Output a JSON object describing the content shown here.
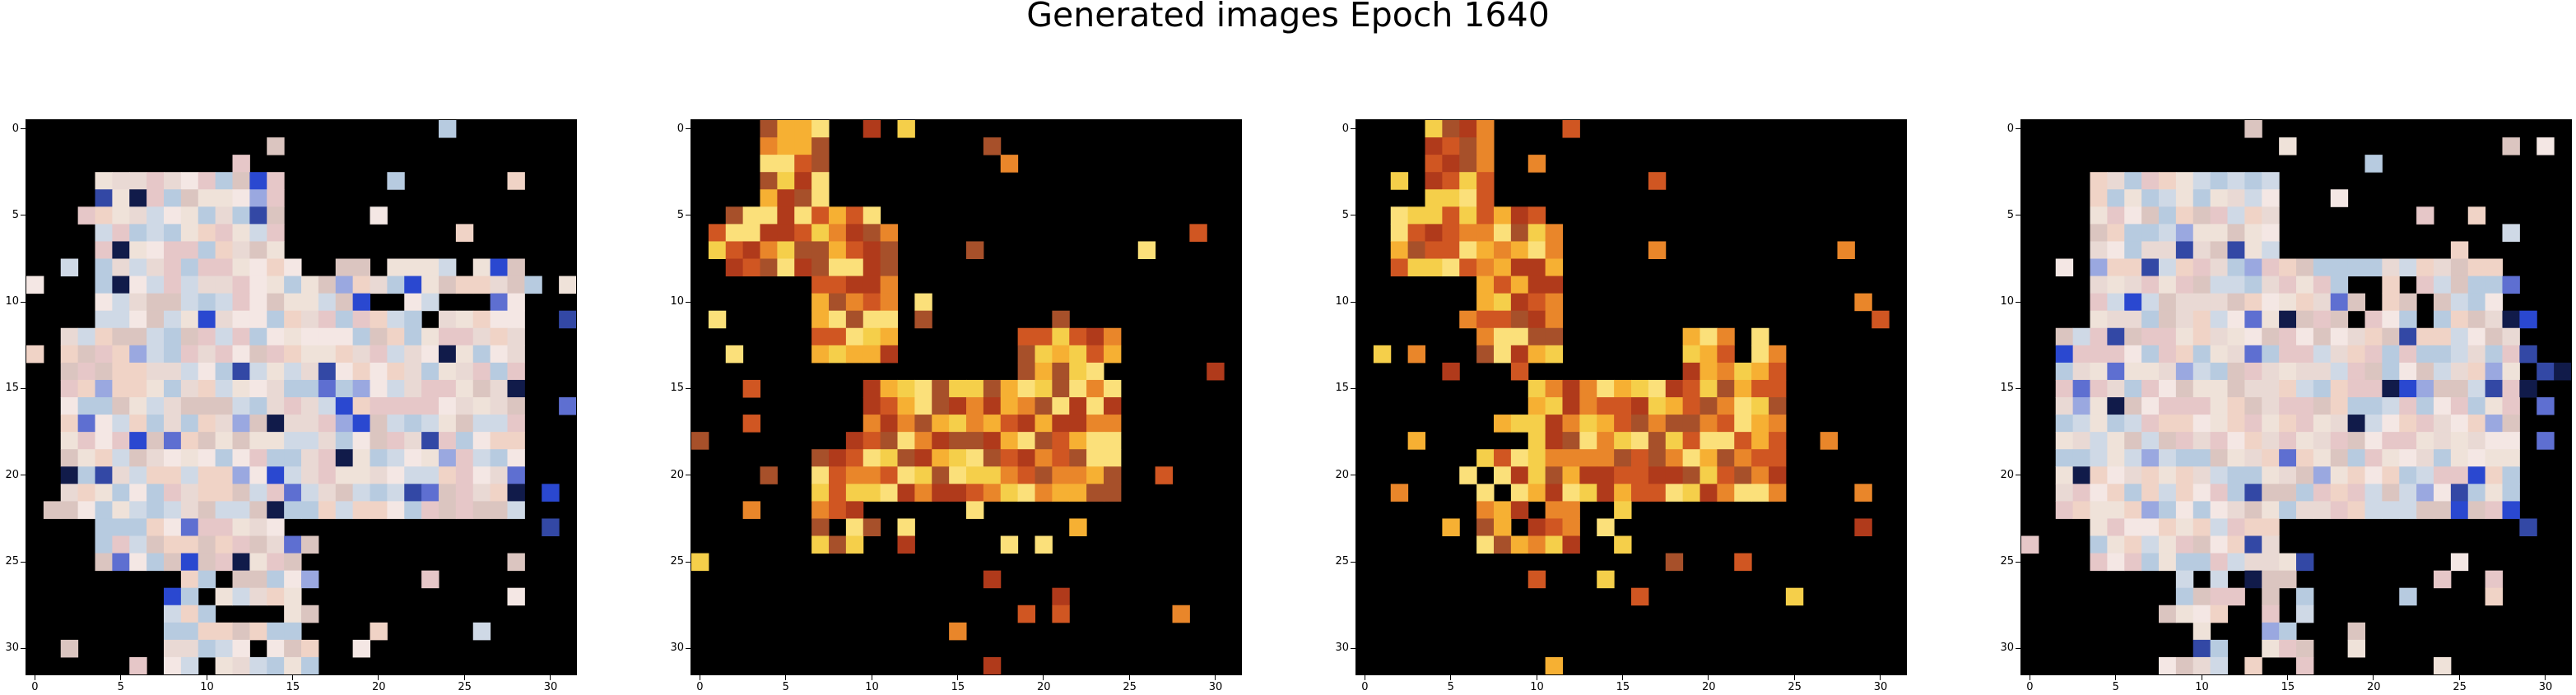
{
  "title": "Generated images Epoch 1640",
  "axis_ticks": {
    "x": [
      0,
      5,
      10,
      15,
      20,
      25,
      30
    ],
    "y": [
      0,
      5,
      10,
      15,
      20,
      25,
      30
    ]
  },
  "image_size": 32,
  "panels": [
    {
      "name": "generated-image-1",
      "theme": "pastel"
    },
    {
      "name": "generated-image-2",
      "theme": "fire"
    },
    {
      "name": "generated-image-3",
      "theme": "fire"
    },
    {
      "name": "generated-image-4",
      "theme": "pastel"
    }
  ],
  "colors": {
    "background": "#000000",
    "pastel": [
      "#f4e7e4",
      "#e9d9d4",
      "#dbc5c0",
      "#f0d3c6",
      "#efe2d9",
      "#cfd9e6",
      "#b7cbe0",
      "#e6c7c8"
    ],
    "blue_accents": [
      "#2a48d0",
      "#5e6fd1",
      "#9aa8e0",
      "#111b4a",
      "#3348a5"
    ],
    "fire": [
      "#f6b033",
      "#e9862a",
      "#f5cf4a",
      "#d05622",
      "#b03a1b",
      "#fbe07a",
      "#a7502a"
    ]
  }
}
